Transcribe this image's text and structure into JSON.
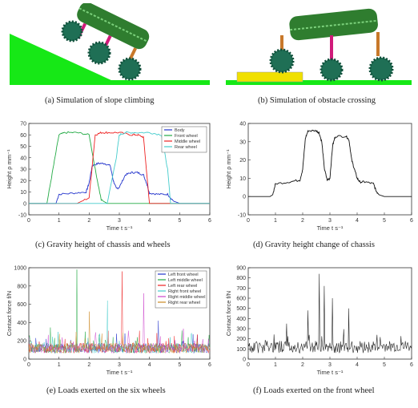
{
  "captions": {
    "a": "(a) Simulation of slope climbing",
    "b": "(b) Simulation of obstacle crossing",
    "c": "(c) Gravity height of chassis and wheels",
    "d": "(d) Gravity height change of chassis",
    "e": "(e) Loads exerted on the six wheels",
    "f": "(f) Loads exerted on the front wheel"
  },
  "colors": {
    "ground": "#16e816",
    "robot_body": "#2f7d2f",
    "wheel": "#1f6f55",
    "leg": "#d01a7a",
    "arm": "#c8782a",
    "obstacle": "#f0e000"
  },
  "chart_data": [
    {
      "id": "c",
      "type": "line",
      "ylabel": "Height ρ mm⁻¹",
      "xlabel": "Time t s⁻¹",
      "xlim": [
        0,
        6
      ],
      "ylim": [
        -10,
        70
      ],
      "xticks": [
        "0",
        "1",
        "2",
        "3",
        "4",
        "5",
        "6"
      ],
      "yticks": [
        "-10",
        "0",
        "10",
        "20",
        "30",
        "40",
        "50",
        "60",
        "70"
      ],
      "legend_position": "top-right",
      "series": [
        {
          "name": "Body",
          "color": "#2233cc",
          "x": [
            0,
            0.5,
            0.9,
            1.0,
            1.5,
            1.9,
            2.0,
            2.1,
            2.3,
            2.5,
            2.7,
            2.8,
            2.9,
            3.0,
            3.2,
            3.4,
            3.6,
            3.8,
            3.9,
            4.0,
            4.3,
            4.6,
            4.8,
            5.0,
            6.0
          ],
          "y": [
            0,
            0,
            0,
            8,
            9,
            10,
            18,
            33,
            35,
            35,
            33,
            20,
            13,
            14,
            25,
            27,
            27,
            25,
            18,
            9,
            8,
            8,
            2,
            0,
            0
          ]
        },
        {
          "name": "Front wheel",
          "color": "#22aa44",
          "x": [
            0,
            0.4,
            0.6,
            0.8,
            1.0,
            1.2,
            1.6,
            2.0,
            2.2,
            2.4,
            2.6,
            2.8,
            3.0,
            3.2,
            3.4,
            3.6,
            3.8,
            4.0,
            4.2,
            4.4,
            4.6,
            4.8,
            6.0
          ],
          "y": [
            0,
            0,
            0,
            30,
            60,
            62,
            62,
            60,
            30,
            3,
            0,
            0,
            0,
            0,
            0,
            0,
            0,
            0,
            0,
            0,
            0,
            0,
            0
          ]
        },
        {
          "name": "Middle wheel",
          "color": "#ee2222",
          "x": [
            0,
            1.6,
            2.0,
            2.2,
            2.4,
            2.6,
            3.0,
            3.4,
            3.6,
            3.8,
            4.0,
            4.5,
            6.0
          ],
          "y": [
            0,
            0,
            5,
            60,
            62,
            62,
            62,
            60,
            60,
            58,
            0,
            0,
            0
          ]
        },
        {
          "name": "Rear wheel",
          "color": "#44cccc",
          "x": [
            0,
            2.6,
            2.9,
            3.0,
            3.2,
            3.5,
            4.0,
            4.4,
            4.6,
            4.7,
            6.0
          ],
          "y": [
            0,
            0,
            40,
            60,
            62,
            62,
            62,
            60,
            30,
            0,
            0
          ]
        }
      ]
    },
    {
      "id": "d",
      "type": "line",
      "ylabel": "Height ρ mm⁻¹",
      "xlabel": "Time t s⁻¹",
      "xlim": [
        0,
        6
      ],
      "ylim": [
        -10,
        40
      ],
      "xticks": [
        "0",
        "1",
        "2",
        "3",
        "4",
        "5",
        "6"
      ],
      "yticks": [
        "-10",
        "0",
        "10",
        "20",
        "30",
        "40"
      ],
      "series": [
        {
          "name": "",
          "color": "#111111",
          "x": [
            0,
            0.8,
            0.9,
            1.0,
            1.5,
            1.9,
            2.0,
            2.1,
            2.2,
            2.5,
            2.6,
            2.7,
            2.8,
            2.9,
            3.0,
            3.1,
            3.2,
            3.6,
            3.7,
            3.8,
            3.9,
            4.0,
            4.1,
            4.3,
            4.6,
            4.7,
            4.8,
            5.0,
            6.0
          ],
          "y": [
            0,
            0,
            1,
            7,
            8,
            9,
            15,
            32,
            36,
            36,
            35,
            30,
            15,
            9,
            10,
            28,
            33,
            33,
            31,
            20,
            15,
            10,
            8,
            8,
            7,
            3,
            1,
            0,
            0
          ]
        }
      ]
    },
    {
      "id": "e",
      "type": "line",
      "ylabel": "Contact force f/N",
      "xlabel": "Time t s⁻¹",
      "xlim": [
        0,
        6
      ],
      "ylim": [
        0,
        1000
      ],
      "xticks": [
        "0",
        "1",
        "2",
        "3",
        "4",
        "5",
        "6"
      ],
      "yticks": [
        "0",
        "200",
        "400",
        "600",
        "800",
        "1000"
      ],
      "legend_position": "top-right",
      "series": [
        {
          "name": "Left front wheel",
          "color": "#2233cc"
        },
        {
          "name": "Left middle wheel",
          "color": "#22aa44"
        },
        {
          "name": "Left rear wheel",
          "color": "#ee2222"
        },
        {
          "name": "Right front wheel",
          "color": "#44cccc"
        },
        {
          "name": "Right middle wheel",
          "color": "#cc44cc"
        },
        {
          "name": "Right rear wheel",
          "color": "#cc8822"
        }
      ],
      "peaks": [
        {
          "x": 1.6,
          "y": 980,
          "series": 1
        },
        {
          "x": 2.6,
          "y": 640,
          "series": 3
        },
        {
          "x": 3.1,
          "y": 960,
          "series": 2
        },
        {
          "x": 3.8,
          "y": 720,
          "series": 4
        },
        {
          "x": 2.0,
          "y": 520,
          "series": 5
        },
        {
          "x": 4.3,
          "y": 420,
          "series": 0
        }
      ],
      "baseline": 120
    },
    {
      "id": "f",
      "type": "line",
      "ylabel": "Contact force f/N",
      "xlabel": "Time t s⁻¹",
      "xlim": [
        0,
        6
      ],
      "ylim": [
        0,
        900
      ],
      "xticks": [
        "0",
        "1",
        "2",
        "3",
        "4",
        "5",
        "6"
      ],
      "yticks": [
        "0",
        "100",
        "200",
        "300",
        "400",
        "500",
        "600",
        "700",
        "800",
        "900"
      ],
      "series": [
        {
          "name": "",
          "color": "#111111"
        }
      ],
      "peaks": [
        {
          "x": 2.2,
          "y": 480
        },
        {
          "x": 2.6,
          "y": 840
        },
        {
          "x": 2.8,
          "y": 720
        },
        {
          "x": 3.1,
          "y": 600
        },
        {
          "x": 3.7,
          "y": 500
        },
        {
          "x": 1.4,
          "y": 350
        }
      ],
      "baseline": 120
    }
  ]
}
